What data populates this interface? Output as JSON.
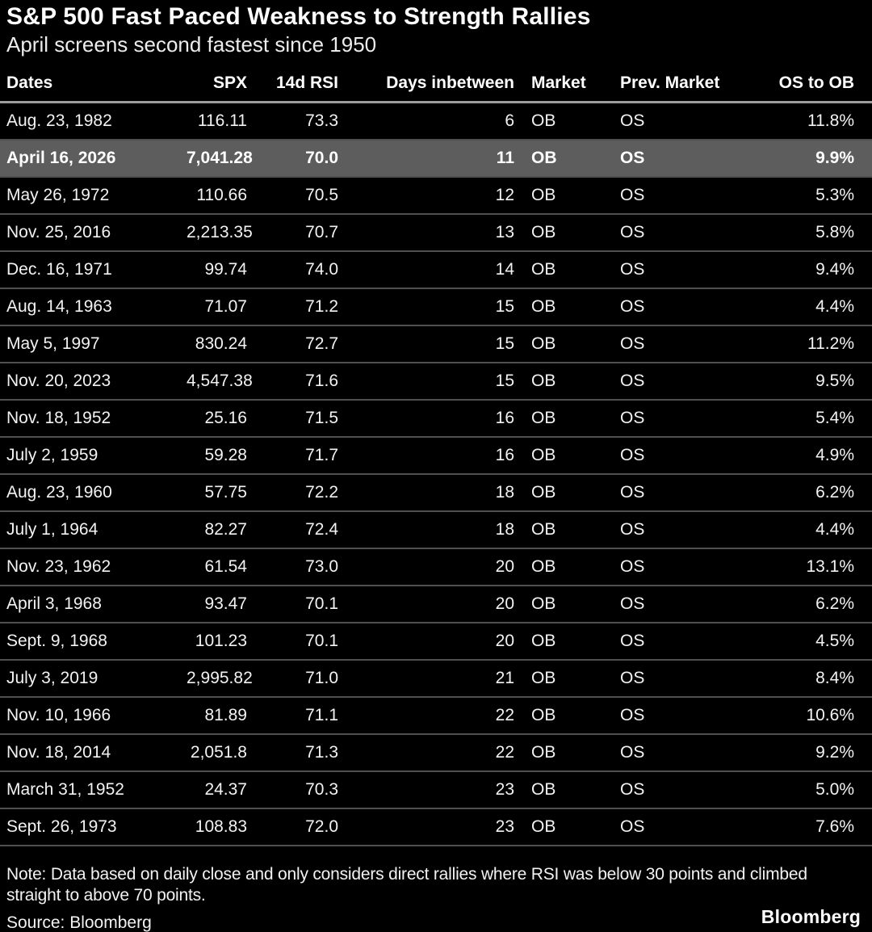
{
  "chart_data": {
    "type": "table",
    "title": "S&P 500 Fast Paced Weakness to Strength Rallies",
    "subtitle": "April screens second fastest since 1950",
    "columns": [
      "Dates",
      "SPX",
      "14d RSI",
      "Days inbetween",
      "Market",
      "Prev. Market",
      "OS to OB"
    ],
    "column_aligns": [
      "left",
      "right",
      "right",
      "right",
      "left",
      "left",
      "right"
    ],
    "highlighted_row_index": 1,
    "rows": [
      [
        "Aug. 23, 1982",
        "116.11",
        "73.3",
        "6",
        "OB",
        "OS",
        "11.8%"
      ],
      [
        "April 16, 2026",
        "7,041.28",
        "70.0",
        "11",
        "OB",
        "OS",
        "9.9%"
      ],
      [
        "May 26, 1972",
        "110.66",
        "70.5",
        "12",
        "OB",
        "OS",
        "5.3%"
      ],
      [
        "Nov. 25, 2016",
        "2,213.35",
        "70.7",
        "13",
        "OB",
        "OS",
        "5.8%"
      ],
      [
        "Dec. 16, 1971",
        "99.74",
        "74.0",
        "14",
        "OB",
        "OS",
        "9.4%"
      ],
      [
        "Aug. 14, 1963",
        "71.07",
        "71.2",
        "15",
        "OB",
        "OS",
        "4.4%"
      ],
      [
        "May 5, 1997",
        "830.24",
        "72.7",
        "15",
        "OB",
        "OS",
        "11.2%"
      ],
      [
        "Nov. 20, 2023",
        "4,547.38",
        "71.6",
        "15",
        "OB",
        "OS",
        "9.5%"
      ],
      [
        "Nov. 18, 1952",
        "25.16",
        "71.5",
        "16",
        "OB",
        "OS",
        "5.4%"
      ],
      [
        "July 2, 1959",
        "59.28",
        "71.7",
        "16",
        "OB",
        "OS",
        "4.9%"
      ],
      [
        "Aug. 23, 1960",
        "57.75",
        "72.2",
        "18",
        "OB",
        "OS",
        "6.2%"
      ],
      [
        "July 1, 1964",
        "82.27",
        "72.4",
        "18",
        "OB",
        "OS",
        "4.4%"
      ],
      [
        "Nov. 23, 1962",
        "61.54",
        "73.0",
        "20",
        "OB",
        "OS",
        "13.1%"
      ],
      [
        "April 3, 1968",
        "93.47",
        "70.1",
        "20",
        "OB",
        "OS",
        "6.2%"
      ],
      [
        "Sept. 9, 1968",
        "101.23",
        "70.1",
        "20",
        "OB",
        "OS",
        "4.5%"
      ],
      [
        "July 3, 2019",
        "2,995.82",
        "71.0",
        "21",
        "OB",
        "OS",
        "8.4%"
      ],
      [
        "Nov. 10, 1966",
        "81.89",
        "71.1",
        "22",
        "OB",
        "OS",
        "10.6%"
      ],
      [
        "Nov. 18, 2014",
        "2,051.8",
        "71.3",
        "22",
        "OB",
        "OS",
        "9.2%"
      ],
      [
        "March 31, 1952",
        "24.37",
        "70.3",
        "23",
        "OB",
        "OS",
        "5.0%"
      ],
      [
        "Sept. 26, 1973",
        "108.83",
        "72.0",
        "23",
        "OB",
        "OS",
        "7.6%"
      ]
    ]
  },
  "footer": {
    "note": "Note: Data based on daily close and only considers direct rallies where RSI was below 30 points and climbed straight to above 70 points.",
    "source": "Source: Bloomberg",
    "brand": "Bloomberg"
  },
  "colors": {
    "background": "#000000",
    "title_text": "#ffffff",
    "body_text": "#f2f2f2",
    "highlight_row_background": "#5d5d5d",
    "row_divider": "#4f4f4f",
    "header_divider": "#9b9b9b"
  }
}
